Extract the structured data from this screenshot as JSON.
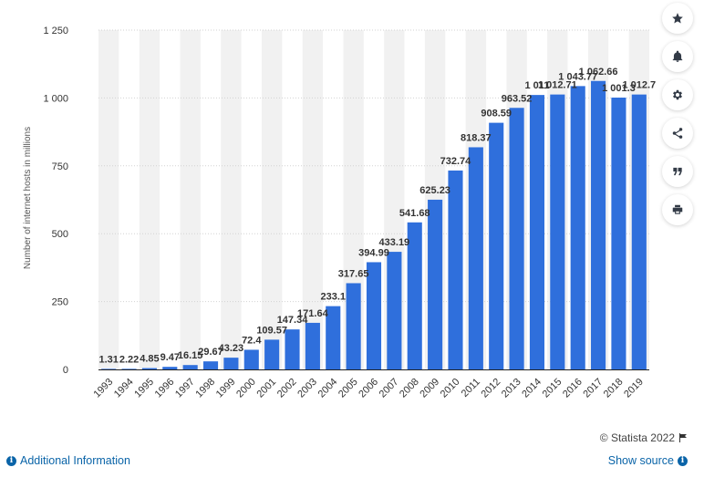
{
  "toolbar": {
    "items": [
      {
        "icon": "star-icon",
        "name": "favorite-button"
      },
      {
        "icon": "bell-icon",
        "name": "notification-button"
      },
      {
        "icon": "gear-icon",
        "name": "settings-button"
      },
      {
        "icon": "share-icon",
        "name": "share-button"
      },
      {
        "icon": "quote-icon",
        "name": "cite-button"
      },
      {
        "icon": "print-icon",
        "name": "print-button"
      }
    ]
  },
  "footer": {
    "copyright": "© Statista 2022",
    "additional_info": "Additional Information",
    "show_source": "Show source"
  },
  "colors": {
    "bar": "#2f6fdc",
    "band": "#f1f1f1",
    "link": "#0a64a8"
  },
  "chart_data": {
    "type": "bar",
    "title": "",
    "xlabel": "",
    "ylabel": "Number of internet hosts in millions",
    "ylim": [
      0,
      1250
    ],
    "yticks": [
      0,
      250,
      500,
      750,
      1000,
      1250
    ],
    "ytick_labels": [
      "0",
      "250",
      "500",
      "750",
      "1 000",
      "1 250"
    ],
    "grid": true,
    "categories": [
      "1993",
      "1994",
      "1995",
      "1996",
      "1997",
      "1998",
      "1999",
      "2000",
      "2001",
      "2002",
      "2003",
      "2004",
      "2005",
      "2006",
      "2007",
      "2008",
      "2009",
      "2010",
      "2011",
      "2012",
      "2013",
      "2014",
      "2015",
      "2016",
      "2017",
      "2018",
      "2019"
    ],
    "values": [
      1.31,
      2.22,
      4.85,
      9.47,
      16.15,
      29.67,
      43.23,
      72.4,
      109.57,
      147.34,
      171.64,
      233.1,
      317.65,
      394.99,
      433.19,
      541.68,
      625.23,
      732.74,
      818.37,
      908.59,
      963.52,
      1011.0,
      1012.71,
      1043.77,
      1062.66,
      1001.3,
      1012.7
    ],
    "data_labels": [
      "1.31",
      "2.22",
      "4.85",
      "9.47",
      "16.15",
      "29.67",
      "43.23",
      "72.4",
      "109.57",
      "147.34",
      "171.64",
      "233.1",
      "317.65",
      "394.99",
      "433.19",
      "541.68",
      "625.23",
      "732.74",
      "818.37",
      "908.59",
      "963.52",
      "1 011",
      "1 012.71",
      "1 043.77",
      "1 062.66",
      "1 001.3",
      "1 012.7"
    ]
  }
}
